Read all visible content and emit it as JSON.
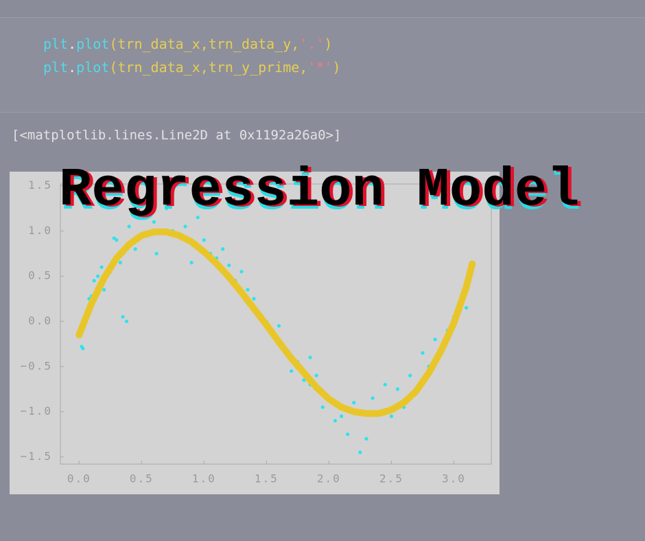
{
  "code": {
    "lines": [
      [
        "plt",
        ".",
        "plot",
        "(trn_data_x,trn_data_y,",
        "'.'",
        ")"
      ],
      [
        "plt",
        ".",
        "plot",
        "(trn_data_x,trn_y_prime,",
        "'*'",
        ")"
      ]
    ]
  },
  "output": "[<matplotlib.lines.Line2D at 0x1192a26a0>]",
  "overlay_title": "Regression Model",
  "chart_data": {
    "type": "scatter",
    "xlim": [
      -0.15,
      3.3
    ],
    "ylim": [
      -1.58,
      1.52
    ],
    "xticks": [
      {
        "value": 0,
        "label": "0.0"
      },
      0.5,
      {
        "value": 1,
        "label": "1.0"
      },
      1.5,
      {
        "value": 2,
        "label": "2.0"
      },
      2.5,
      {
        "value": 3,
        "label": "3.0"
      }
    ],
    "yticks": [
      {
        "value": -1.5,
        "label": "−1.5"
      },
      {
        "value": -1,
        "label": "−1.0"
      },
      {
        "value": -0.5,
        "label": "−0.5"
      },
      {
        "value": 0,
        "label": "0.0"
      },
      0.5,
      {
        "value": 1,
        "label": "1.0"
      },
      1.5
    ],
    "series": [
      {
        "marker": ".",
        "color": "#2ee3ee",
        "x": [
          0.02,
          0.03,
          0.06,
          0.08,
          0.1,
          0.12,
          0.15,
          0.18,
          0.2,
          0.25,
          0.28,
          0.3,
          0.33,
          0.38,
          0.4,
          0.45,
          0.5,
          0.55,
          0.6,
          0.62,
          0.7,
          0.75,
          0.85,
          0.9,
          0.95,
          1.0,
          1.05,
          1.1,
          1.15,
          1.2,
          1.25,
          1.3,
          1.35,
          1.4,
          1.45,
          1.5,
          1.55,
          1.6,
          1.65,
          1.7,
          1.75,
          1.8,
          1.85,
          1.9,
          1.95,
          2.0,
          2.05,
          2.1,
          2.15,
          2.2,
          2.25,
          2.3,
          2.35,
          2.4,
          2.45,
          2.5,
          2.55,
          2.6,
          2.65,
          2.7,
          2.75,
          2.8,
          2.85,
          2.9,
          2.95,
          3.0,
          3.05,
          3.1,
          3.1,
          1.85,
          0.35
        ],
        "values": [
          -0.28,
          -0.3,
          0.1,
          0.25,
          0.28,
          0.45,
          0.5,
          0.6,
          0.35,
          0.55,
          0.92,
          0.9,
          0.65,
          0.0,
          1.05,
          0.8,
          1.2,
          0.95,
          1.1,
          0.75,
          1.25,
          1.0,
          1.05,
          0.65,
          1.15,
          0.9,
          0.75,
          0.7,
          0.8,
          0.62,
          0.45,
          0.55,
          0.35,
          0.25,
          0.05,
          0.0,
          -0.1,
          -0.05,
          -0.3,
          -0.55,
          -0.45,
          -0.65,
          -0.7,
          -0.6,
          -0.95,
          -0.85,
          -1.1,
          -1.05,
          -1.25,
          -0.9,
          -1.45,
          -1.3,
          -0.85,
          -1.0,
          -0.7,
          -1.05,
          -0.75,
          -0.95,
          -0.6,
          -0.8,
          -0.35,
          -0.5,
          -0.2,
          -0.3,
          -0.1,
          0.05,
          0.2,
          0.35,
          0.15,
          -0.4,
          0.05
        ]
      },
      {
        "marker": "*",
        "color": "#e8c62a",
        "x": [
          0,
          0.1,
          0.2,
          0.3,
          0.4,
          0.5,
          0.6,
          0.7,
          0.8,
          0.9,
          1.0,
          1.1,
          1.2,
          1.3,
          1.4,
          1.5,
          1.6,
          1.7,
          1.8,
          1.9,
          2.0,
          2.1,
          2.2,
          2.3,
          2.4,
          2.5,
          2.6,
          2.7,
          2.8,
          2.9,
          3.0,
          3.1,
          3.15
        ],
        "values": [
          -0.15,
          0.2,
          0.48,
          0.7,
          0.85,
          0.95,
          0.99,
          0.99,
          0.95,
          0.88,
          0.77,
          0.64,
          0.49,
          0.32,
          0.14,
          -0.04,
          -0.23,
          -0.41,
          -0.57,
          -0.73,
          -0.86,
          -0.95,
          -1.0,
          -1.02,
          -1.02,
          -0.98,
          -0.9,
          -0.77,
          -0.57,
          -0.32,
          -0.02,
          0.38,
          0.65
        ]
      }
    ]
  }
}
